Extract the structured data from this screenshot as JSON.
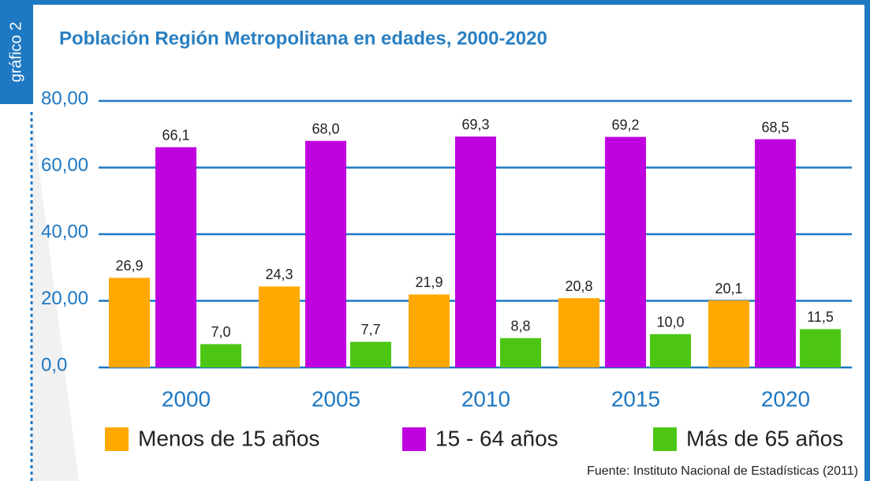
{
  "chart_data": {
    "type": "bar",
    "badge": "gráfico 2",
    "title": "Población Región Metropolitana en edades, 2000-2020",
    "categories": [
      "2000",
      "2005",
      "2010",
      "2015",
      "2020"
    ],
    "series": [
      {
        "name": "Menos de 15 años",
        "color": "#ffa800",
        "values": [
          26.9,
          24.3,
          21.9,
          20.8,
          20.1
        ],
        "value_labels": [
          "26,9",
          "24,3",
          "21,9",
          "20,8",
          "20,1"
        ]
      },
      {
        "name": "15 - 64 años",
        "color": "#bf00df",
        "values": [
          66.1,
          68.0,
          69.3,
          69.2,
          68.5
        ],
        "value_labels": [
          "66,1",
          "68,0",
          "69,3",
          "69,2",
          "68,5"
        ]
      },
      {
        "name": "Más de 65 años",
        "color": "#4cc613",
        "values": [
          7.0,
          7.7,
          8.8,
          10.0,
          11.5
        ],
        "value_labels": [
          "7,0",
          "7,7",
          "8,8",
          "10,0",
          "11,5"
        ]
      }
    ],
    "ylim": [
      0,
      80
    ],
    "yticks": [
      {
        "value": 0,
        "label": "0,0"
      },
      {
        "value": 20,
        "label": "20,00"
      },
      {
        "value": 40,
        "label": "40,00"
      },
      {
        "value": 60,
        "label": "60,00"
      },
      {
        "value": 80,
        "label": "80,00"
      }
    ],
    "grid": true,
    "source": "Fuente: Instituto Nacional de Estadísticas (2011)"
  }
}
